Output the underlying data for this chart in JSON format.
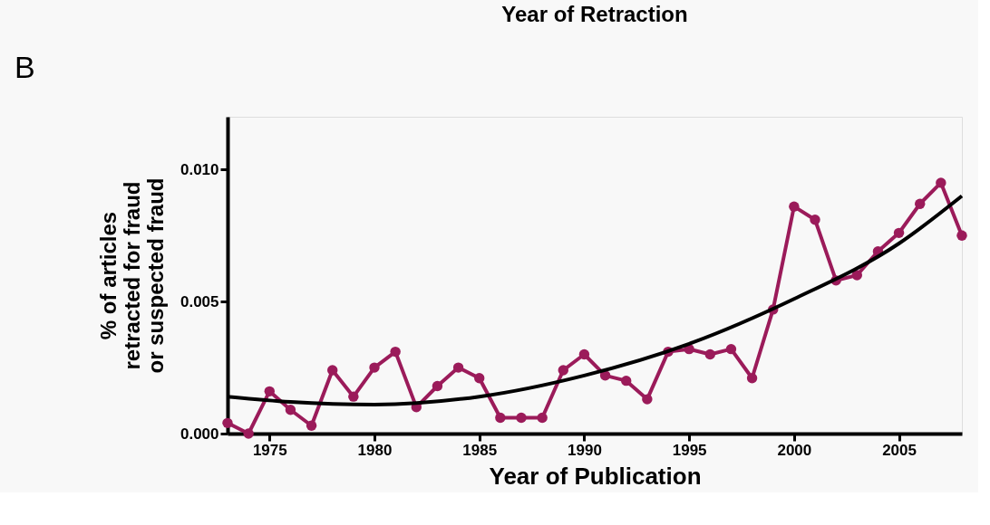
{
  "chart_data": {
    "type": "line",
    "title": "Year of Retraction",
    "xlabel": "Year of Publication",
    "ylabel": "% of articles\nretracted for fraud\nor suspected fraud",
    "annotations": [
      "B"
    ],
    "xlim": [
      1973,
      2008
    ],
    "xticks": [
      1975,
      1980,
      1985,
      1990,
      1995,
      2000,
      2005
    ],
    "ylim": [
      0,
      0.012
    ],
    "yticks": [
      {
        "value": 0,
        "label": "0.000"
      },
      {
        "value": 0.005,
        "label": "0.005"
      },
      {
        "value": 0.01,
        "label": "0.010"
      }
    ],
    "grid": false,
    "series": [
      {
        "marker": "circle",
        "color": "#9b1b5a",
        "x": [
          1973,
          1974,
          1975,
          1976,
          1977,
          1978,
          1979,
          1980,
          1981,
          1982,
          1983,
          1984,
          1985,
          1986,
          1987,
          1988,
          1989,
          1990,
          1991,
          1992,
          1993,
          1994,
          1995,
          1996,
          1997,
          1998,
          1999,
          2000,
          2001,
          2002,
          2003,
          2004,
          2005,
          2006,
          2007,
          2008
        ],
        "values": [
          0.0004,
          0.0,
          0.0016,
          0.0009,
          0.0003,
          0.0024,
          0.0014,
          0.0025,
          0.0031,
          0.001,
          0.0018,
          0.0025,
          0.0021,
          0.0006,
          0.0006,
          0.0006,
          0.0024,
          0.003,
          0.0022,
          0.002,
          0.0013,
          0.0031,
          0.0032,
          0.003,
          0.0032,
          0.0021,
          0.0047,
          0.0086,
          0.0081,
          0.0058,
          0.006,
          0.0069,
          0.0076,
          0.0087,
          0.0095,
          0.0075
        ]
      },
      {
        "marker": "none",
        "color": "#000000",
        "x": [
          1973,
          1976,
          1980,
          1985,
          1990,
          1995,
          2000,
          2005,
          2008
        ],
        "values": [
          0.0014,
          0.0012,
          0.0011,
          0.0014,
          0.0022,
          0.0034,
          0.0051,
          0.0072,
          0.009
        ]
      }
    ]
  }
}
